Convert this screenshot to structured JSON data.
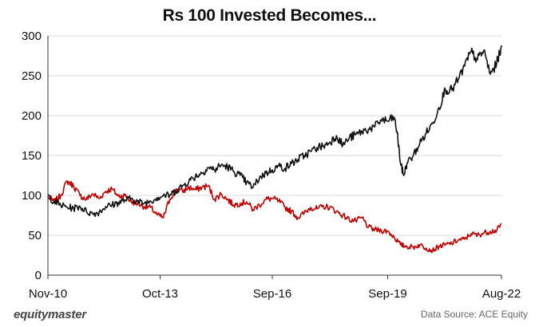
{
  "title": "Rs 100 Invested Becomes...",
  "brand": "equitymaster",
  "source": "Data Source: ACE Equity",
  "colors": {
    "series_black": "#111111",
    "series_red": "#c00000",
    "grid": "#d9d9d9",
    "axis": "#333333"
  },
  "chart_data": {
    "type": "line",
    "title": "Rs 100 Invested Becomes...",
    "xlabel": "",
    "ylabel": "",
    "ylim": [
      0,
      300
    ],
    "yticks": [
      0,
      50,
      100,
      150,
      200,
      250,
      300
    ],
    "xlim": [
      0,
      141.5
    ],
    "xticks": [
      {
        "label": "Nov-10",
        "t": 0
      },
      {
        "label": "Oct-13",
        "t": 35
      },
      {
        "label": "Sep-16",
        "t": 70
      },
      {
        "label": "Sep-19",
        "t": 106
      },
      {
        "label": "Aug-22",
        "t": 141.5
      }
    ],
    "x_unit": "months since Nov-10",
    "grid": "horizontal",
    "series": [
      {
        "name": "Black line",
        "color": "#111111",
        "points": [
          [
            0,
            100
          ],
          [
            2,
            92
          ],
          [
            4,
            88
          ],
          [
            6,
            85
          ],
          [
            8,
            84
          ],
          [
            10,
            86
          ],
          [
            12,
            80
          ],
          [
            14,
            77
          ],
          [
            16,
            79
          ],
          [
            18,
            86
          ],
          [
            20,
            88
          ],
          [
            22,
            91
          ],
          [
            24,
            94
          ],
          [
            26,
            96
          ],
          [
            28,
            92
          ],
          [
            30,
            90
          ],
          [
            32,
            93
          ],
          [
            34,
            97
          ],
          [
            36,
            100
          ],
          [
            38,
            100
          ],
          [
            40,
            106
          ],
          [
            42,
            112
          ],
          [
            44,
            118
          ],
          [
            46,
            124
          ],
          [
            48,
            128
          ],
          [
            50,
            135
          ],
          [
            52,
            132
          ],
          [
            54,
            138
          ],
          [
            56,
            136
          ],
          [
            58,
            130
          ],
          [
            60,
            125
          ],
          [
            62,
            116
          ],
          [
            64,
            110
          ],
          [
            66,
            122
          ],
          [
            68,
            128
          ],
          [
            70,
            132
          ],
          [
            72,
            137
          ],
          [
            74,
            134
          ],
          [
            76,
            140
          ],
          [
            78,
            145
          ],
          [
            80,
            150
          ],
          [
            82,
            155
          ],
          [
            84,
            160
          ],
          [
            86,
            162
          ],
          [
            88,
            167
          ],
          [
            90,
            175
          ],
          [
            92,
            163
          ],
          [
            94,
            172
          ],
          [
            96,
            176
          ],
          [
            98,
            180
          ],
          [
            100,
            183
          ],
          [
            102,
            186
          ],
          [
            104,
            195
          ],
          [
            106,
            193
          ],
          [
            108,
            198
          ],
          [
            109,
            178
          ],
          [
            110,
            140
          ],
          [
            111,
            125
          ],
          [
            112,
            140
          ],
          [
            114,
            150
          ],
          [
            116,
            165
          ],
          [
            118,
            178
          ],
          [
            120,
            190
          ],
          [
            122,
            210
          ],
          [
            124,
            233
          ],
          [
            126,
            232
          ],
          [
            128,
            245
          ],
          [
            130,
            262
          ],
          [
            132,
            280
          ],
          [
            134,
            270
          ],
          [
            136,
            282
          ],
          [
            138,
            252
          ],
          [
            140,
            265
          ],
          [
            141.5,
            288
          ]
        ]
      },
      {
        "name": "Red line",
        "color": "#c00000",
        "points": [
          [
            0,
            98
          ],
          [
            2,
            92
          ],
          [
            4,
            100
          ],
          [
            6,
            118
          ],
          [
            8,
            112
          ],
          [
            10,
            100
          ],
          [
            12,
            95
          ],
          [
            14,
            102
          ],
          [
            16,
            96
          ],
          [
            18,
            105
          ],
          [
            20,
            108
          ],
          [
            22,
            99
          ],
          [
            24,
            100
          ],
          [
            26,
            92
          ],
          [
            28,
            90
          ],
          [
            30,
            86
          ],
          [
            32,
            85
          ],
          [
            34,
            76
          ],
          [
            36,
            72
          ],
          [
            38,
            95
          ],
          [
            40,
            108
          ],
          [
            42,
            105
          ],
          [
            44,
            110
          ],
          [
            46,
            107
          ],
          [
            48,
            110
          ],
          [
            50,
            112
          ],
          [
            52,
            95
          ],
          [
            54,
            102
          ],
          [
            56,
            95
          ],
          [
            58,
            88
          ],
          [
            60,
            90
          ],
          [
            62,
            92
          ],
          [
            64,
            82
          ],
          [
            66,
            88
          ],
          [
            68,
            95
          ],
          [
            70,
            96
          ],
          [
            72,
            93
          ],
          [
            74,
            85
          ],
          [
            76,
            80
          ],
          [
            78,
            72
          ],
          [
            80,
            78
          ],
          [
            82,
            85
          ],
          [
            84,
            83
          ],
          [
            86,
            86
          ],
          [
            88,
            85
          ],
          [
            90,
            80
          ],
          [
            92,
            75
          ],
          [
            94,
            70
          ],
          [
            96,
            68
          ],
          [
            98,
            72
          ],
          [
            100,
            60
          ],
          [
            102,
            57
          ],
          [
            104,
            56
          ],
          [
            106,
            55
          ],
          [
            108,
            48
          ],
          [
            110,
            38
          ],
          [
            112,
            36
          ],
          [
            114,
            35
          ],
          [
            116,
            38
          ],
          [
            118,
            34
          ],
          [
            120,
            31
          ],
          [
            122,
            36
          ],
          [
            124,
            38
          ],
          [
            126,
            40
          ],
          [
            128,
            44
          ],
          [
            130,
            45
          ],
          [
            132,
            52
          ],
          [
            134,
            50
          ],
          [
            136,
            53
          ],
          [
            138,
            55
          ],
          [
            140,
            56
          ],
          [
            141.5,
            64
          ]
        ]
      }
    ]
  }
}
